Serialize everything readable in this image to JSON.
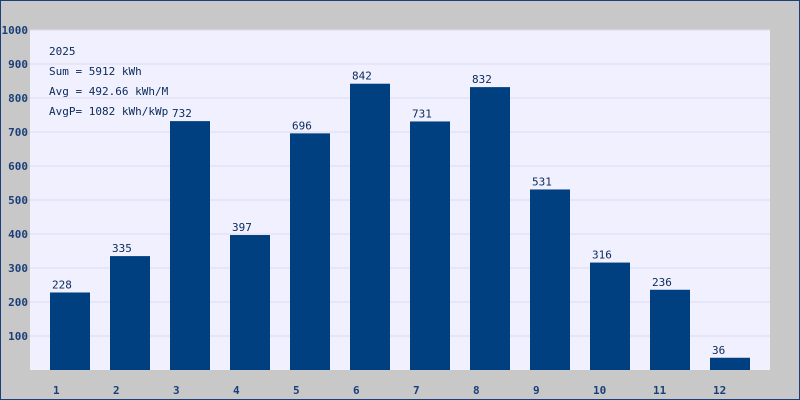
{
  "chart_data": {
    "type": "bar",
    "annotations": [
      "2025",
      "Sum = 5912 kWh",
      "Avg = 492.66 kWh/M",
      "AvgP= 1082 kWh/kWp"
    ],
    "categories": [
      "1",
      "2",
      "3",
      "4",
      "5",
      "6",
      "7",
      "8",
      "9",
      "10",
      "11",
      "12"
    ],
    "values": [
      228,
      335,
      732,
      397,
      696,
      842,
      731,
      832,
      531,
      316,
      236,
      36
    ],
    "color": "#003f80",
    "ylim": [
      0,
      1000
    ],
    "yticks": [
      100,
      200,
      300,
      400,
      500,
      600,
      700,
      800,
      900,
      1000
    ],
    "grid": true
  }
}
